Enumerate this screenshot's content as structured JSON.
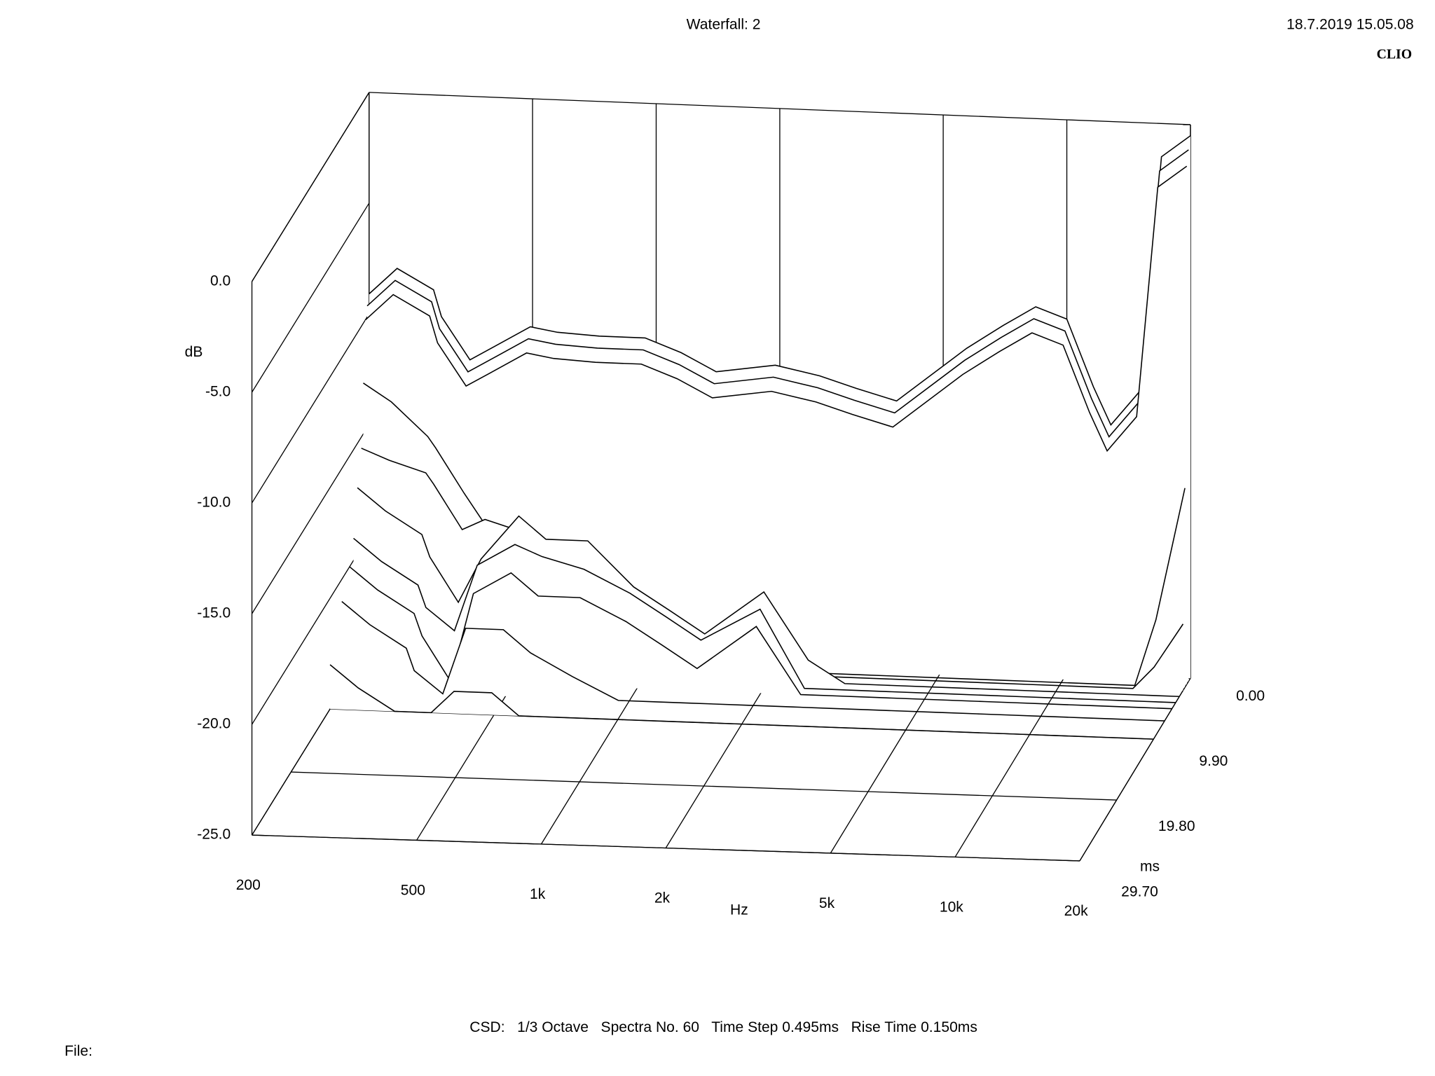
{
  "chart_data": {
    "type": "waterfall",
    "title": "Waterfall: 2",
    "timestamp": "18.7.2019 15.05.08",
    "brand": "CLIO",
    "footer": "CSD:   1/3 Octave   Spectra No. 60   Time Step 0.495ms   Rise Time 0.150ms",
    "file_label": "File:",
    "y_label": "dB",
    "x_label": "Hz",
    "z_label": "ms",
    "color": "#000000",
    "x_scale": "log",
    "xlim": [
      200,
      20000
    ],
    "xticks": [
      200,
      500,
      {
        "value": 1000,
        "label": "1k"
      },
      {
        "value": 2000,
        "label": "2k"
      },
      {
        "value": 5000,
        "label": "5k"
      },
      {
        "value": 10000,
        "label": "10k"
      },
      {
        "value": 20000,
        "label": "20k"
      }
    ],
    "ylim": [
      -25,
      0
    ],
    "yticks": [
      {
        "value": 0,
        "label": "0.0"
      },
      {
        "value": -5,
        "label": "-5.0"
      },
      {
        "value": -10,
        "label": "-10.0"
      },
      {
        "value": -15,
        "label": "-15.0"
      },
      {
        "value": -20,
        "label": "-20.0"
      },
      {
        "value": -25,
        "label": "-25.0"
      }
    ],
    "zlim": [
      0,
      29.7
    ],
    "zticks": [
      {
        "value": 0,
        "label": "0.00"
      },
      {
        "value": 9.9,
        "label": "9.90"
      },
      {
        "value": 19.8,
        "label": "19.80"
      },
      {
        "value": 29.7,
        "label": "29.70"
      }
    ],
    "x": [
      200,
      234,
      287,
      300,
      352,
      400,
      494,
      575,
      727,
      940,
      1150,
      1400,
      1950,
      2500,
      3070,
      3850,
      5700,
      7000,
      8400,
      10000,
      11600,
      12800,
      15100,
      17000,
      20000
    ],
    "z": [
      0,
      0.495,
      0.99,
      1.485,
      1.98,
      2.97,
      3.96,
      4.95,
      6.93,
      9.9
    ],
    "series": [
      {
        "values": [
          -9.1,
          -7.9,
          -8.8,
          -10,
          -11.9,
          -11.3,
          -10.3,
          -10.5,
          -10.6,
          -10.6,
          -11.2,
          -12,
          -11.6,
          -12,
          -12.5,
          -13,
          -10.5,
          -9.4,
          -8.5,
          -9,
          -12,
          -13.7,
          -12.1,
          -1.5,
          -0.5
        ]
      },
      {
        "values": [
          -9.5,
          -8.3,
          -9.2,
          -10.4,
          -12.3,
          -11.7,
          -10.7,
          -10.9,
          -11,
          -11,
          -11.6,
          -12.4,
          -12,
          -12.4,
          -12.9,
          -13.4,
          -10.9,
          -9.8,
          -8.9,
          -9.4,
          -12.4,
          -14.1,
          -12.5,
          -2,
          -1
        ]
      },
      {
        "values": [
          -10,
          -8.8,
          -9.7,
          -10.9,
          -12.8,
          -12.2,
          -11.2,
          -11.4,
          -11.5,
          -11.5,
          -12.1,
          -12.9,
          -12.5,
          -12.9,
          -13.4,
          -13.9,
          -11.4,
          -10.3,
          -9.4,
          -9.9,
          -12.9,
          -14.6,
          -13,
          -2.6,
          -1.6
        ]
      },
      {
        "values": [
          -12.7,
          -13.5,
          -15,
          -15.5,
          -17.5,
          -19,
          -20,
          -21,
          -22,
          -23,
          -23.5,
          -24,
          -24.5,
          -25,
          -25,
          -25,
          -25,
          -25,
          -25,
          -25,
          -25,
          -25,
          -25,
          -22,
          -16
        ]
      },
      {
        "values": [
          -15.5,
          -16,
          -16.5,
          -17,
          -19,
          -18.5,
          -19,
          -20,
          -21,
          -22,
          -23,
          -24,
          -25,
          -25,
          -25,
          -25,
          -25,
          -25,
          -25,
          -25,
          -25,
          -25,
          -25,
          -24,
          -22
        ]
      },
      {
        "values": [
          -17,
          -18,
          -19,
          -20,
          -22,
          -20,
          -18,
          -19,
          -19,
          -21,
          -22,
          -23,
          -21,
          -24,
          -25,
          -25,
          -25,
          -25,
          -25,
          -25,
          -25,
          -25,
          -25,
          -25,
          -25
        ]
      },
      {
        "values": [
          -19,
          -20,
          -21,
          -22,
          -23,
          -20,
          -19,
          -19.5,
          -20,
          -21,
          -22,
          -23,
          -21.5,
          -25,
          -25,
          -25,
          -25,
          -25,
          -25,
          -25,
          -25,
          -25,
          -25,
          -25,
          -25
        ]
      },
      {
        "values": [
          -20,
          -21,
          -22,
          -23,
          -25,
          -21,
          -20,
          -21,
          -21,
          -22,
          -23,
          -24,
          -22,
          -25,
          -25,
          -25,
          -25,
          -25,
          -25,
          -25,
          -25,
          -25,
          -25,
          -25,
          -25
        ]
      },
      {
        "values": [
          -21,
          -22,
          -23,
          -24,
          -25,
          -22,
          -22,
          -23,
          -24,
          -25,
          -25,
          -25,
          -25,
          -25,
          -25,
          -25,
          -25,
          -25,
          -25,
          -25,
          -25,
          -25,
          -25,
          -25,
          -25
        ]
      },
      {
        "values": [
          -23,
          -24,
          -25,
          -25,
          -25,
          -24,
          -24,
          -25,
          -25,
          -25,
          -25,
          -25,
          -25,
          -25,
          -25,
          -25,
          -25,
          -25,
          -25,
          -25,
          -25,
          -25,
          -25,
          -25,
          -25
        ]
      }
    ]
  }
}
